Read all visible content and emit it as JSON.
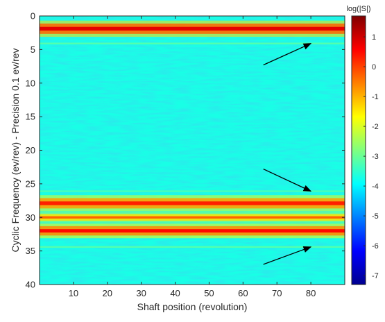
{
  "chart_data": {
    "type": "heatmap",
    "title": "",
    "xlabel": "Shaft position (revolution)",
    "ylabel": "Cyclic Frequency  (ev/rev) - Precision 0.1 ev/rev",
    "xlim": [
      0,
      90
    ],
    "ylim": [
      0,
      40
    ],
    "y_reversed": true,
    "x_ticks": [
      10,
      20,
      30,
      40,
      50,
      60,
      70,
      80
    ],
    "y_ticks": [
      0,
      5,
      10,
      15,
      20,
      25,
      30,
      35,
      40
    ],
    "grid": false,
    "colormap": "jet",
    "colorbar": {
      "title": "log(|S|)",
      "range": [
        -7.3,
        1.7
      ],
      "ticks": [
        1,
        0,
        -1,
        -2,
        -3,
        -4,
        -5,
        -6,
        -7
      ]
    },
    "background_level": -3.7,
    "bands": [
      {
        "cyclic_frequency": 1.9,
        "level": 0.8,
        "width": 0.55
      },
      {
        "cyclic_frequency": 4.1,
        "level": -3.2,
        "width": 0.25
      },
      {
        "cyclic_frequency": 26.1,
        "level": -3.3,
        "width": 0.25
      },
      {
        "cyclic_frequency": 27.9,
        "level": 0.3,
        "width": 0.55
      },
      {
        "cyclic_frequency": 30.0,
        "level": -0.3,
        "width": 0.35
      },
      {
        "cyclic_frequency": 32.0,
        "level": 0.5,
        "width": 0.5
      },
      {
        "cyclic_frequency": 34.4,
        "level": -3.2,
        "width": 0.25
      }
    ],
    "annotations": [
      {
        "type": "arrow",
        "from": [
          66,
          7.3
        ],
        "to": [
          80,
          4.1
        ]
      },
      {
        "type": "arrow",
        "from": [
          66,
          22.8
        ],
        "to": [
          80,
          26.1
        ]
      },
      {
        "type": "arrow",
        "from": [
          66,
          37.0
        ],
        "to": [
          80,
          34.4
        ]
      }
    ]
  }
}
